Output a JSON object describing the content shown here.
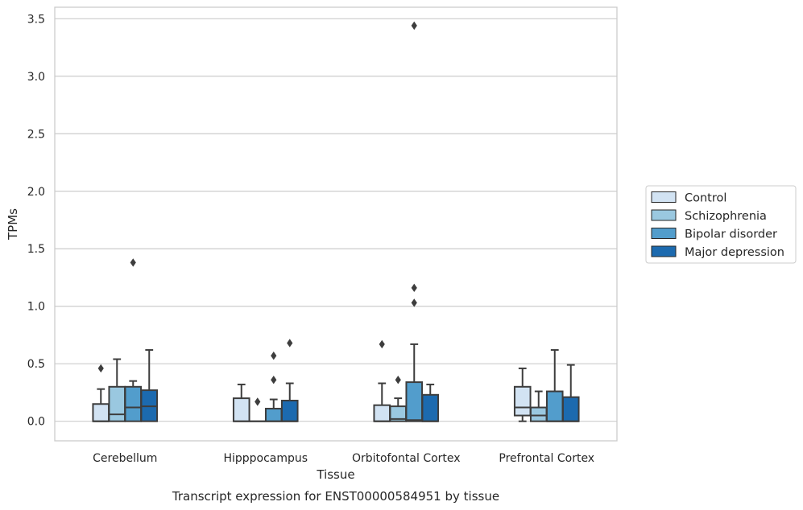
{
  "chart_data": {
    "type": "box",
    "xlabel": "Tissue",
    "ylabel": "TPMs",
    "caption": "Transcript expression for ENST00000584951 by tissue",
    "categories": [
      "Cerebellum",
      "Hipppocampus",
      "Orbitofontal Cortex",
      "Prefrontal Cortex"
    ],
    "ylim": [
      -0.17,
      3.6
    ],
    "yticks": [
      0.0,
      0.5,
      1.0,
      1.5,
      2.0,
      2.5,
      3.0,
      3.5
    ],
    "ytick_labels": [
      "0.0",
      "0.5",
      "1.0",
      "1.5",
      "2.0",
      "2.5",
      "3.0",
      "3.5"
    ],
    "grid": "horizontal",
    "legend_position": "right",
    "series": [
      {
        "name": "Control",
        "color": "#d2e3f3",
        "boxes": [
          {
            "whislo": 0.0,
            "q1": 0.0,
            "med": 0.0,
            "q3": 0.15,
            "whishi": 0.28,
            "fliers": [
              0.46
            ]
          },
          {
            "whislo": 0.0,
            "q1": 0.0,
            "med": 0.0,
            "q3": 0.2,
            "whishi": 0.32,
            "fliers": []
          },
          {
            "whislo": 0.0,
            "q1": 0.0,
            "med": 0.0,
            "q3": 0.14,
            "whishi": 0.33,
            "fliers": [
              0.67
            ]
          },
          {
            "whislo": 0.0,
            "q1": 0.05,
            "med": 0.12,
            "q3": 0.3,
            "whishi": 0.46,
            "fliers": []
          }
        ]
      },
      {
        "name": "Schizophrenia",
        "color": "#9ac8e0",
        "boxes": [
          {
            "whislo": 0.0,
            "q1": 0.0,
            "med": 0.06,
            "q3": 0.3,
            "whishi": 0.54,
            "fliers": []
          },
          {
            "whislo": 0.0,
            "q1": 0.0,
            "med": 0.0,
            "q3": 0.0,
            "whishi": 0.0,
            "fliers": [
              0.17
            ]
          },
          {
            "whislo": 0.0,
            "q1": 0.0,
            "med": 0.02,
            "q3": 0.13,
            "whishi": 0.2,
            "fliers": [
              0.36
            ]
          },
          {
            "whislo": 0.0,
            "q1": 0.0,
            "med": 0.05,
            "q3": 0.12,
            "whishi": 0.26,
            "fliers": []
          }
        ]
      },
      {
        "name": "Bipolar disorder",
        "color": "#529dcc",
        "boxes": [
          {
            "whislo": 0.0,
            "q1": 0.0,
            "med": 0.12,
            "q3": 0.3,
            "whishi": 0.35,
            "fliers": [
              1.38
            ]
          },
          {
            "whislo": 0.0,
            "q1": 0.0,
            "med": 0.0,
            "q3": 0.11,
            "whishi": 0.19,
            "fliers": [
              0.36,
              0.57
            ]
          },
          {
            "whislo": 0.0,
            "q1": 0.0,
            "med": 0.01,
            "q3": 0.34,
            "whishi": 0.67,
            "fliers": [
              1.16,
              1.03,
              3.44
            ]
          },
          {
            "whislo": 0.0,
            "q1": 0.0,
            "med": 0.0,
            "q3": 0.26,
            "whishi": 0.62,
            "fliers": []
          }
        ]
      },
      {
        "name": "Major depression",
        "color": "#1c6aaf",
        "boxes": [
          {
            "whislo": 0.0,
            "q1": 0.0,
            "med": 0.13,
            "q3": 0.27,
            "whishi": 0.62,
            "fliers": []
          },
          {
            "whislo": 0.0,
            "q1": 0.0,
            "med": 0.0,
            "q3": 0.18,
            "whishi": 0.33,
            "fliers": [
              0.68
            ]
          },
          {
            "whislo": 0.0,
            "q1": 0.0,
            "med": 0.0,
            "q3": 0.23,
            "whishi": 0.32,
            "fliers": []
          },
          {
            "whislo": 0.0,
            "q1": 0.0,
            "med": 0.0,
            "q3": 0.21,
            "whishi": 0.49,
            "fliers": []
          }
        ]
      }
    ]
  }
}
